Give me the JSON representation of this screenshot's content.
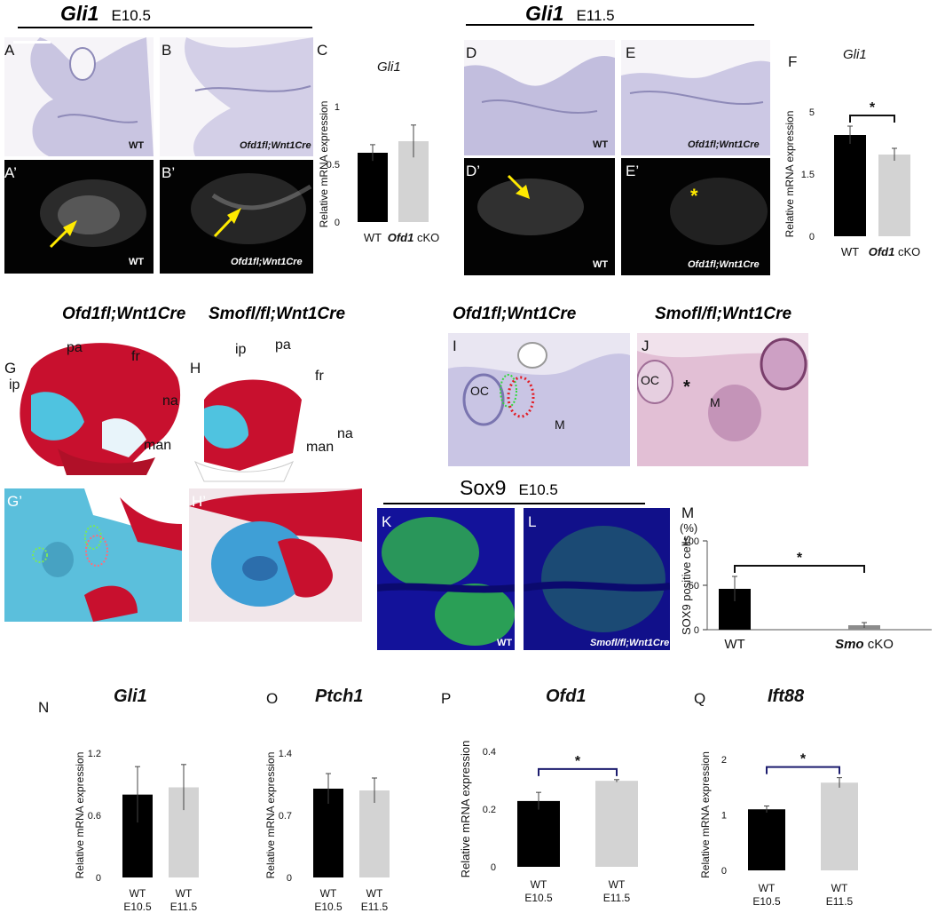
{
  "headers": {
    "gli1_e105": {
      "gene": "Gli1",
      "stage": "E10.5"
    },
    "gli1_e115": {
      "gene": "Gli1",
      "stage": "E11.5"
    },
    "sox9_e105": {
      "gene": "Sox9",
      "stage": "E10.5"
    }
  },
  "panel_letters": {
    "A": "A",
    "A_prime": "A’",
    "B": "B",
    "B_prime": "B’",
    "C": "C",
    "D": "D",
    "D_prime": "D’",
    "E": "E",
    "E_prime": "E’",
    "F": "F",
    "G": "G",
    "G_prime": "G’",
    "H": "H",
    "H_prime": "H’",
    "I": "I",
    "J": "J",
    "K": "K",
    "L": "L",
    "M": "M",
    "N": "N",
    "O": "O",
    "P": "P",
    "Q": "Q"
  },
  "panel_tags": {
    "wt": "WT",
    "ofd1_cko": "Ofd1fl;Wnt1Cre",
    "smo_cko": "Smofl/fl;Wnt1Cre"
  },
  "genotype_titles": {
    "ofd1_g": "Ofd1fl;Wnt1Cre",
    "smo_h": "Smofl/fl;Wnt1Cre",
    "ofd1_i": "Ofd1fl;Wnt1Cre",
    "smo_j": "Smofl/fl;Wnt1Cre"
  },
  "anatomy_labels": {
    "g": {
      "ip": "ip",
      "pa": "pa",
      "fr": "fr",
      "na": "na",
      "man": "man"
    },
    "h": {
      "ip": "ip",
      "pa": "pa",
      "fr": "fr",
      "na": "na",
      "man": "man"
    },
    "i": {
      "oc": "OC",
      "m": "M"
    },
    "j": {
      "oc": "OC",
      "m": "M",
      "star": "*"
    }
  },
  "chart_data": [
    {
      "id": "C",
      "type": "bar",
      "title": "Gli1",
      "ylabel": "Relative mRNA expression",
      "categories": [
        "WT",
        "Ofd1 cKO"
      ],
      "values": [
        0.6,
        0.7
      ],
      "errors": [
        0.07,
        0.14
      ],
      "ylim": [
        0,
        1
      ],
      "yticks": [
        "0",
        "0.5",
        "1"
      ],
      "colors": [
        "#000000",
        "#d3d3d3"
      ],
      "significance": ""
    },
    {
      "id": "F",
      "type": "bar",
      "title": "Gli1",
      "ylabel": "Relative mRNA expression",
      "categories": [
        "WT",
        "Ofd1 cKO"
      ],
      "values": [
        3.7,
        2.6
      ],
      "errors": [
        0.5,
        0.35
      ],
      "ylim": [
        0,
        5
      ],
      "ytick_values": [
        0,
        1.5,
        5
      ],
      "yticks": [
        "0",
        "1.5",
        "5"
      ],
      "colors": [
        "#000000",
        "#d3d3d3"
      ],
      "significance": "*"
    },
    {
      "id": "M",
      "type": "bar",
      "title": "",
      "unit": "(%)",
      "ylabel": "SOX9 positive cells",
      "categories": [
        "WT",
        "Smo cKO"
      ],
      "values": [
        46,
        5
      ],
      "errors": [
        14,
        3
      ],
      "ylim": [
        0,
        100
      ],
      "yticks": [
        "0",
        "50",
        "100"
      ],
      "colors": [
        "#000000",
        "#8c8c8c"
      ],
      "significance": "*"
    },
    {
      "id": "N",
      "type": "bar",
      "title": "Gli1",
      "ylabel": "Relative mRNA expression",
      "categories": [
        "WT E10.5",
        "WT E11.5"
      ],
      "values": [
        0.8,
        0.87
      ],
      "errors": [
        0.27,
        0.22
      ],
      "ylim": [
        0,
        1.2
      ],
      "yticks": [
        "0",
        "0.6",
        "1.2"
      ],
      "colors": [
        "#000000",
        "#d3d3d3"
      ],
      "significance": ""
    },
    {
      "id": "O",
      "type": "bar",
      "title": "Ptch1",
      "ylabel": "Relative mRNA expression",
      "categories": [
        "WT E10.5",
        "WT E11.5"
      ],
      "values": [
        1.0,
        0.98
      ],
      "errors": [
        0.17,
        0.14
      ],
      "ylim": [
        0,
        1.4
      ],
      "yticks": [
        "0",
        "0.7",
        "1.4"
      ],
      "colors": [
        "#000000",
        "#d3d3d3"
      ],
      "significance": ""
    },
    {
      "id": "P",
      "type": "bar",
      "title": "Ofd1",
      "ylabel": "Relative mRNA expression",
      "categories": [
        "WT E10.5",
        "WT E11.5"
      ],
      "values": [
        0.228,
        0.298
      ],
      "errors": [
        0.03,
        0.004
      ],
      "ylim": [
        0,
        0.4
      ],
      "yticks": [
        "0",
        "0.2",
        "0.4"
      ],
      "colors": [
        "#000000",
        "#d3d3d3"
      ],
      "significance": "*"
    },
    {
      "id": "Q",
      "type": "bar",
      "title": "Ift88",
      "ylabel": "Relative mRNA expression",
      "categories": [
        "WT E10.5",
        "WT E11.5"
      ],
      "values": [
        1.1,
        1.58
      ],
      "errors": [
        0.06,
        0.09
      ],
      "ylim": [
        0,
        2
      ],
      "yticks": [
        "0",
        "1",
        "2"
      ],
      "colors": [
        "#000000",
        "#d3d3d3"
      ],
      "significance": "*"
    }
  ]
}
